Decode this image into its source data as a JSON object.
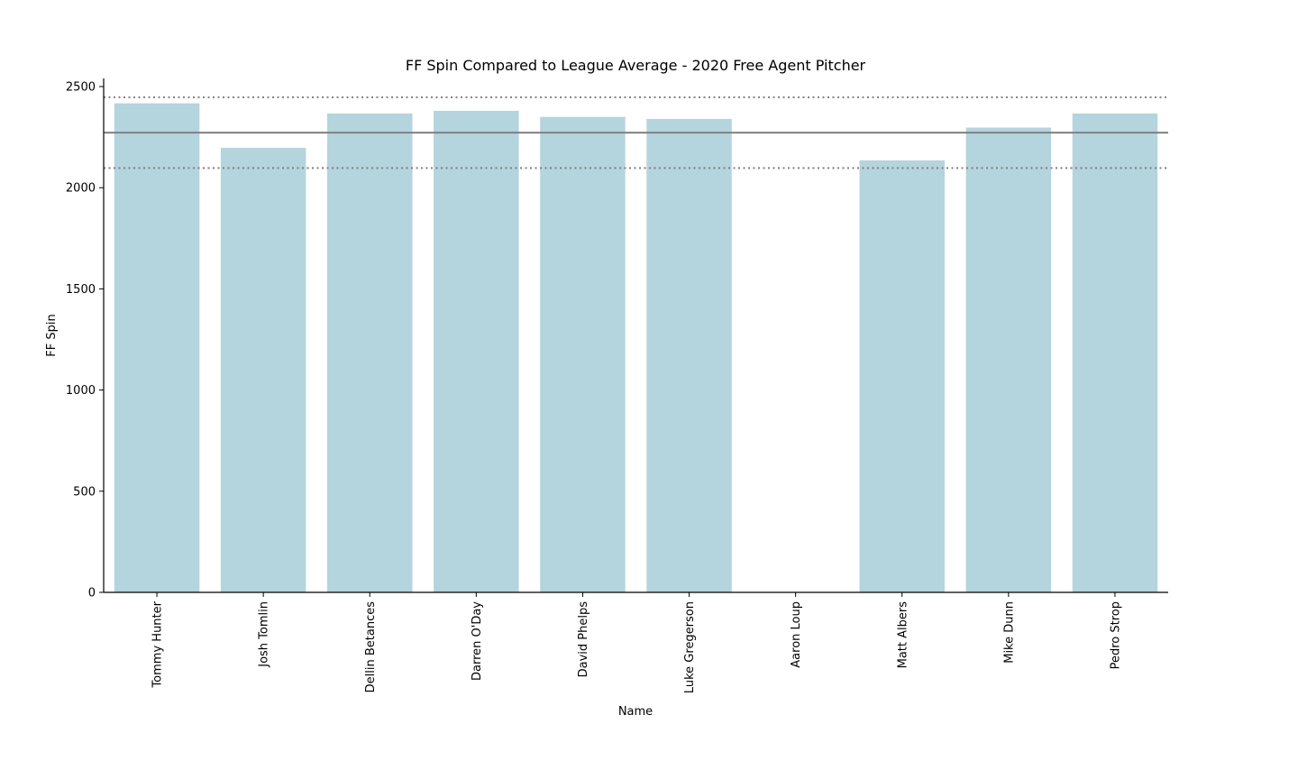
{
  "chart_data": {
    "type": "bar",
    "title": "FF Spin Compared to League Average - 2020 Free Agent Pitcher",
    "xlabel": "Name",
    "ylabel": "FF Spin",
    "categories": [
      "Tommy Hunter",
      "Josh Tomlin",
      "Dellin Betances",
      "Darren O'Day",
      "David Phelps",
      "Luke Gregerson",
      "Aaron Loup",
      "Matt Albers",
      "Mike Dunn",
      "Pedro Strop"
    ],
    "values": [
      2417,
      2197,
      2367,
      2380,
      2350,
      2340,
      null,
      2135,
      2297,
      2367
    ],
    "ylim": [
      0,
      2540
    ],
    "yticks": [
      0,
      500,
      1000,
      1500,
      2000,
      2500
    ],
    "reference_lines": [
      {
        "value": 2272,
        "style": "solid"
      },
      {
        "value": 2447,
        "style": "dotted"
      },
      {
        "value": 2097,
        "style": "dotted"
      }
    ],
    "grid": false,
    "colors": {
      "bar": "#b4d4de",
      "reference_line": "#808080",
      "axis": "#000000"
    }
  }
}
